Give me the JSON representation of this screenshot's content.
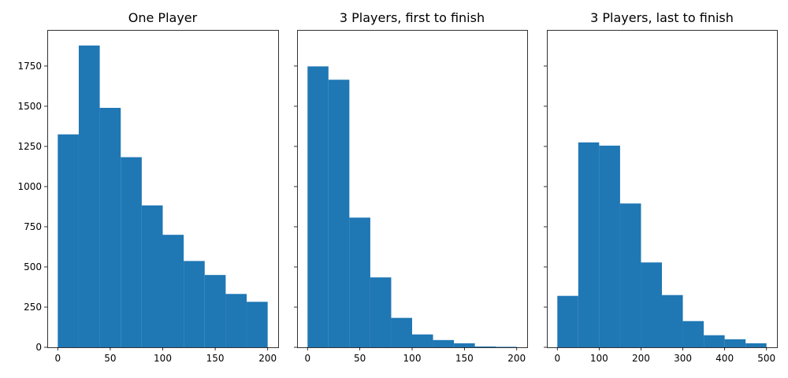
{
  "bar_color": "#1f77b4",
  "chart_data": [
    {
      "type": "bar",
      "title": "One Player",
      "bin_edges": [
        0,
        20,
        40,
        60,
        80,
        100,
        120,
        140,
        160,
        180,
        200
      ],
      "values": [
        1325,
        1878,
        1490,
        1183,
        883,
        700,
        537,
        450,
        332,
        283
      ],
      "xlim": [
        -10,
        210
      ],
      "ylim": [
        0,
        1975
      ],
      "xticks": [
        0,
        50,
        100,
        150,
        200
      ],
      "yticks": [
        0,
        250,
        500,
        750,
        1000,
        1250,
        1500,
        1750
      ],
      "xlabel": "",
      "ylabel": "",
      "grid": false
    },
    {
      "type": "bar",
      "title": "3 Players, first to finish",
      "bin_edges": [
        0,
        20,
        40,
        60,
        80,
        100,
        120,
        140,
        160,
        180,
        200
      ],
      "values": [
        1748,
        1665,
        807,
        435,
        183,
        80,
        45,
        25,
        5,
        3
      ],
      "xlim": [
        -10,
        210
      ],
      "ylim": [
        0,
        1975
      ],
      "xticks": [
        0,
        50,
        100,
        150,
        200
      ],
      "yticks": [
        0,
        250,
        500,
        750,
        1000,
        1250,
        1500,
        1750
      ],
      "xlabel": "",
      "ylabel": "",
      "grid": false
    },
    {
      "type": "bar",
      "title": "3 Players, last to finish",
      "bin_edges": [
        0,
        50,
        100,
        150,
        200,
        250,
        300,
        350,
        400,
        450,
        500
      ],
      "values": [
        320,
        1275,
        1255,
        895,
        528,
        325,
        163,
        75,
        50,
        25
      ],
      "xlim": [
        -25,
        525
      ],
      "ylim": [
        0,
        1975
      ],
      "xticks": [
        0,
        100,
        200,
        300,
        400,
        500
      ],
      "yticks": [
        0,
        250,
        500,
        750,
        1000,
        1250,
        1500,
        1750
      ],
      "xlabel": "",
      "ylabel": "",
      "grid": false
    }
  ]
}
